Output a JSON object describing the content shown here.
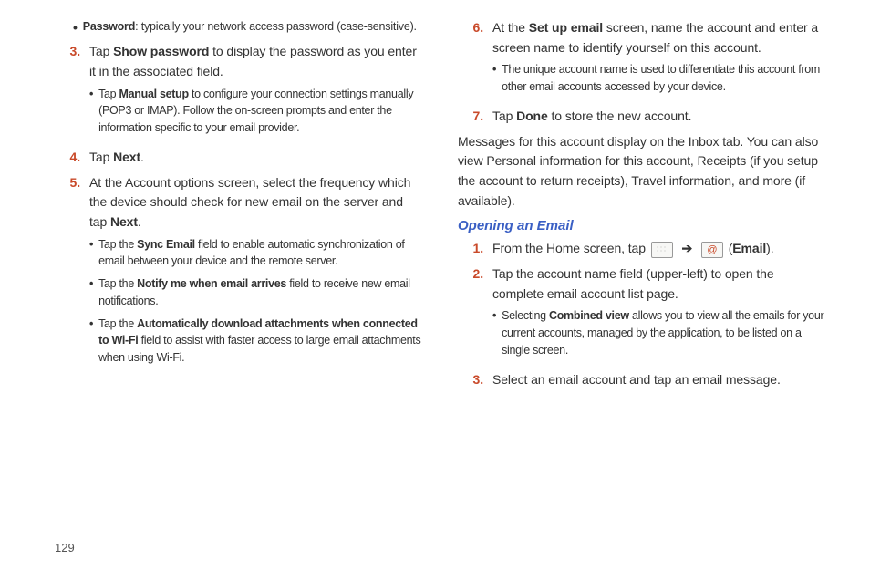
{
  "colors": {
    "accent_num": "#c94a2a",
    "heading_blue": "#3a5fc4",
    "body": "#333333",
    "background": "#ffffff"
  },
  "left": {
    "bullet1_label": "Password",
    "bullet1_rest": ": typically your network access password (case-sensitive).",
    "n3_num": "3.",
    "n3_pre": "Tap ",
    "n3_bold": "Show password",
    "n3_rest": " to display the password as you enter it in the associated field.",
    "n3_sub_pre": "Tap ",
    "n3_sub_bold": "Manual setup",
    "n3_sub_rest": " to configure your connection settings manually (POP3 or IMAP). Follow the on-screen prompts and enter the information specific to your email provider.",
    "n4_num": "4.",
    "n4_pre": "Tap ",
    "n4_bold": "Next",
    "n4_rest": ".",
    "n5_num": "5.",
    "n5_text_a": "At the Account options screen, select the frequency which the device should check for new email on the server and tap ",
    "n5_bold": "Next",
    "n5_text_b": ".",
    "n5_s1_pre": "Tap the ",
    "n5_s1_bold": "Sync Email",
    "n5_s1_rest": " field to enable automatic synchronization of email between your device and the remote server.",
    "n5_s2_pre": "Tap the ",
    "n5_s2_bold": "Notify me when email arrives",
    "n5_s2_rest": " field to receive new email notifications.",
    "n5_s3_pre": "Tap the ",
    "n5_s3_bold": "Automatically download attachments when connected to Wi-Fi",
    "n5_s3_rest": " field to assist with faster access to large email attachments when using Wi-Fi."
  },
  "right": {
    "n6_num": "6.",
    "n6_pre": "At the ",
    "n6_bold": "Set up email",
    "n6_rest": " screen, name the account and enter a screen name to identify yourself on this account.",
    "n6_sub": "The unique account name is used to differentiate this account from other email accounts accessed by your device.",
    "n7_num": "7.",
    "n7_pre": "Tap ",
    "n7_bold": "Done",
    "n7_rest": " to store the new account.",
    "para1": "Messages for this account display on the Inbox tab. You can also view Personal information for this account, Receipts (if you setup the account to return receipts), Travel information, and more (if available).",
    "heading": "Opening an Email",
    "o1_num": "1.",
    "o1_pre": "From the Home screen, tap ",
    "o1_bold": "Email",
    "o1_open": " (",
    "o1_close": ").",
    "o2_num": "2.",
    "o2_text": "Tap the account name field (upper-left) to open the complete email account list page.",
    "o2_sub_pre": "Selecting ",
    "o2_sub_bold": "Combined view",
    "o2_sub_rest": " allows you to view all the emails for your current accounts, managed by the application, to be listed on a single screen.",
    "o3_num": "3.",
    "o3_text": "Select an email account and tap an email message."
  },
  "page_number": "129"
}
